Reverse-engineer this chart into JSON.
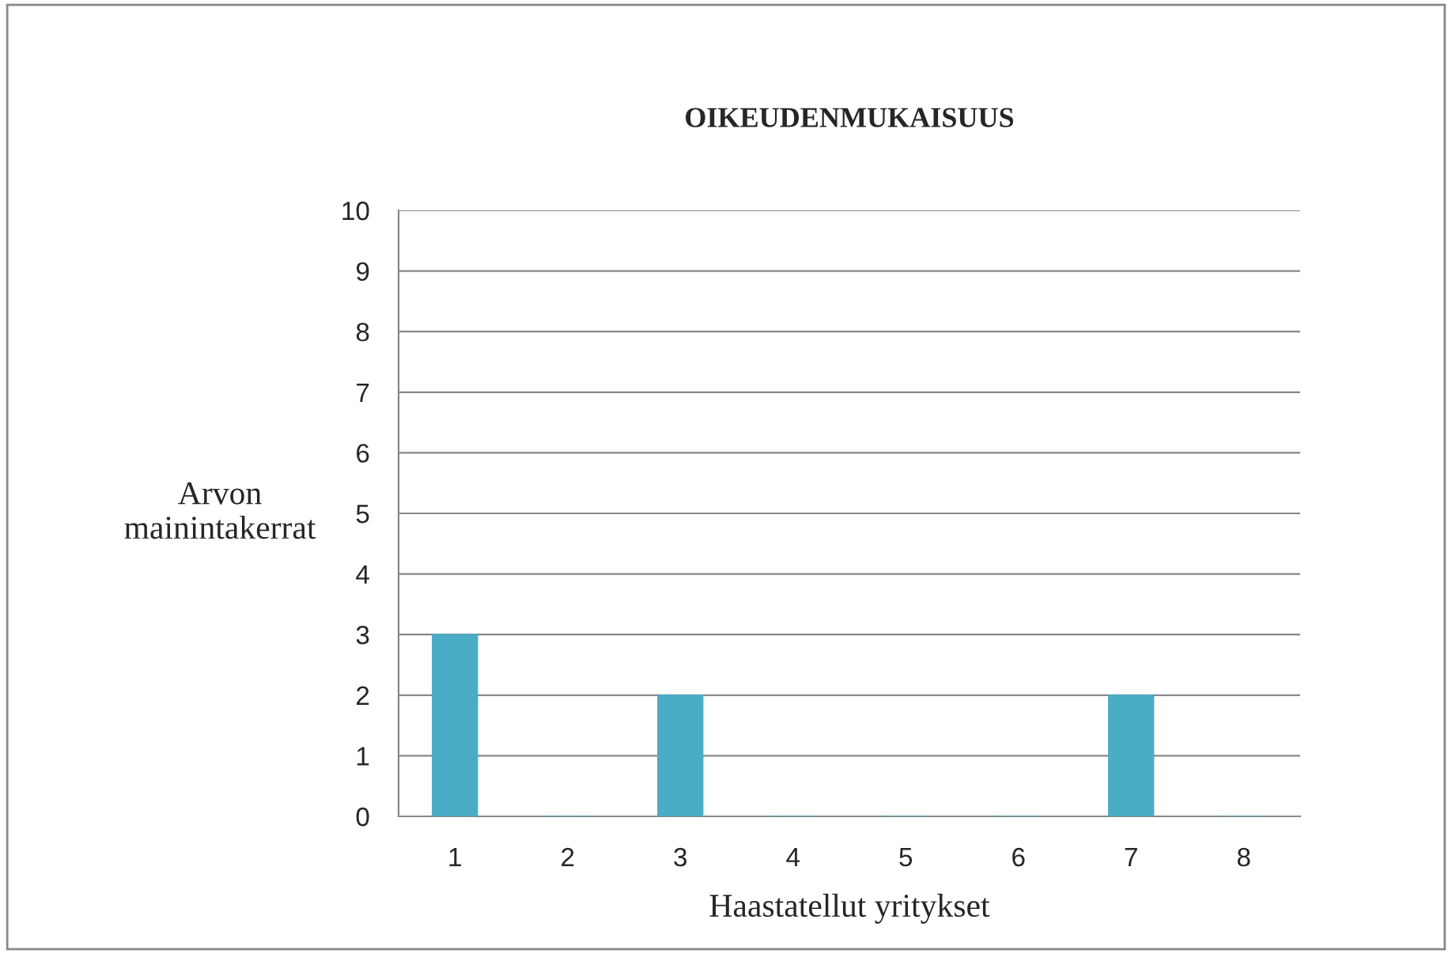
{
  "chart_data": {
    "type": "bar",
    "title": "OIKEUDENMUKAISUUS",
    "xlabel": "Haastatellut yritykset",
    "ylabel": "Arvon\nmainintakerrat",
    "categories": [
      "1",
      "2",
      "3",
      "4",
      "5",
      "6",
      "7",
      "8"
    ],
    "values": [
      3,
      0,
      2,
      0,
      0,
      0,
      2,
      0
    ],
    "color": "#4bacc6",
    "ylim": [
      0,
      10
    ],
    "yticks": [
      0,
      1,
      2,
      3,
      4,
      5,
      6,
      7,
      8,
      9,
      10
    ],
    "grid": "y"
  }
}
